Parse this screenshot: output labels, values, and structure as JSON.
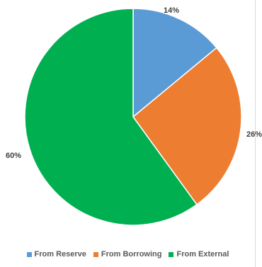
{
  "chart_data": {
    "type": "pie",
    "title": "",
    "categories": [
      "From Reserve",
      "From Borrowing",
      "From External"
    ],
    "values": [
      14,
      26,
      60
    ],
    "data_labels": [
      "14%",
      "26%",
      "60%"
    ],
    "colors": [
      "#5b9bd5",
      "#ed7d31",
      "#00b050"
    ],
    "start_angle_deg": 0,
    "direction": "clockwise",
    "legend_position": "bottom",
    "label_position": "outside_end"
  }
}
